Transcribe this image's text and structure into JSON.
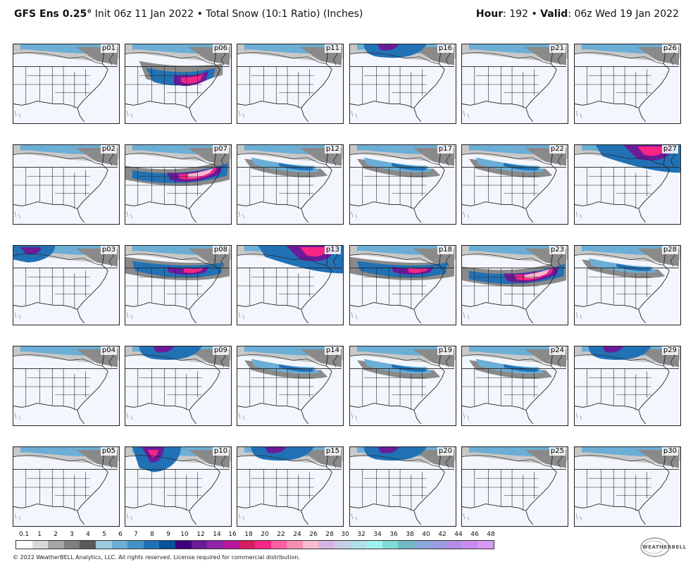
{
  "header": {
    "model": "GFS Ens 0.25°",
    "init": "Init 06z 11 Jan 2022",
    "separator": "•",
    "product": "Total Snow (10:1 Ratio) (Inches)",
    "hour_label": "Hour",
    "hour_value": ": 192",
    "valid_label": "Valid",
    "valid_value": ": 06z Wed 19 Jan 2022"
  },
  "panels": [
    {
      "label": "p01",
      "snow": "light-north"
    },
    {
      "label": "p06",
      "snow": "heavy-southeast"
    },
    {
      "label": "p11",
      "snow": "light-north"
    },
    {
      "label": "p16",
      "snow": "moderate-north"
    },
    {
      "label": "p21",
      "snow": "light-north"
    },
    {
      "label": "p26",
      "snow": "light-north"
    },
    {
      "label": "p02",
      "snow": "light-north"
    },
    {
      "label": "p07",
      "snow": "heavy-south"
    },
    {
      "label": "p12",
      "snow": "moderate-mid"
    },
    {
      "label": "p17",
      "snow": "moderate-mid"
    },
    {
      "label": "p22",
      "snow": "moderate-mid"
    },
    {
      "label": "p27",
      "snow": "heavy-northeast"
    },
    {
      "label": "p03",
      "snow": "moderate-northwest"
    },
    {
      "label": "p08",
      "snow": "heavy-mid"
    },
    {
      "label": "p13",
      "snow": "heavy-northeast"
    },
    {
      "label": "p18",
      "snow": "heavy-mid"
    },
    {
      "label": "p23",
      "snow": "heavy-south"
    },
    {
      "label": "p28",
      "snow": "moderate-mid"
    },
    {
      "label": "p04",
      "snow": "light-north"
    },
    {
      "label": "p09",
      "snow": "moderate-north"
    },
    {
      "label": "p14",
      "snow": "moderate-mid"
    },
    {
      "label": "p19",
      "snow": "moderate-mid"
    },
    {
      "label": "p24",
      "snow": "moderate-mid"
    },
    {
      "label": "p29",
      "snow": "moderate-north"
    },
    {
      "label": "p05",
      "snow": "light-north"
    },
    {
      "label": "p10",
      "snow": "heavy-northwest"
    },
    {
      "label": "p15",
      "snow": "moderate-north"
    },
    {
      "label": "p20",
      "snow": "moderate-north"
    },
    {
      "label": "p25",
      "snow": "light-north"
    },
    {
      "label": "p30",
      "snow": "light-north"
    }
  ],
  "colorbar": {
    "ticks": [
      "0.1",
      "1",
      "2",
      "3",
      "4",
      "5",
      "6",
      "7",
      "8",
      "9",
      "10",
      "12",
      "14",
      "16",
      "18",
      "20",
      "22",
      "24",
      "26",
      "28",
      "30",
      "32",
      "34",
      "36",
      "38",
      "40",
      "42",
      "44",
      "46",
      "48"
    ],
    "colors": [
      "#ffffff",
      "#d9d9d9",
      "#a6a6a6",
      "#7f7f7f",
      "#5a5a5a",
      "#9ecae1",
      "#6baed6",
      "#4292c6",
      "#2171b5",
      "#08519c",
      "#3f007d",
      "#6a1b9a",
      "#8e24aa",
      "#b5179e",
      "#d81b60",
      "#f72585",
      "#ff5fa2",
      "#f48fb1",
      "#f8bbd0",
      "#d8b4e2",
      "#c7cde8",
      "#b0e0e6",
      "#9ff1ef",
      "#7fdcd8",
      "#6fb8c4",
      "#8aa8d8",
      "#9b9be0",
      "#b48ee6",
      "#c98cf0",
      "#d69af5"
    ]
  },
  "footer": {
    "copyright": "© 2022 WeatherBELL Analytics, LLC. All rights reserved. License required for commercial distribution.",
    "logo_text": "WEATHERBELL"
  }
}
